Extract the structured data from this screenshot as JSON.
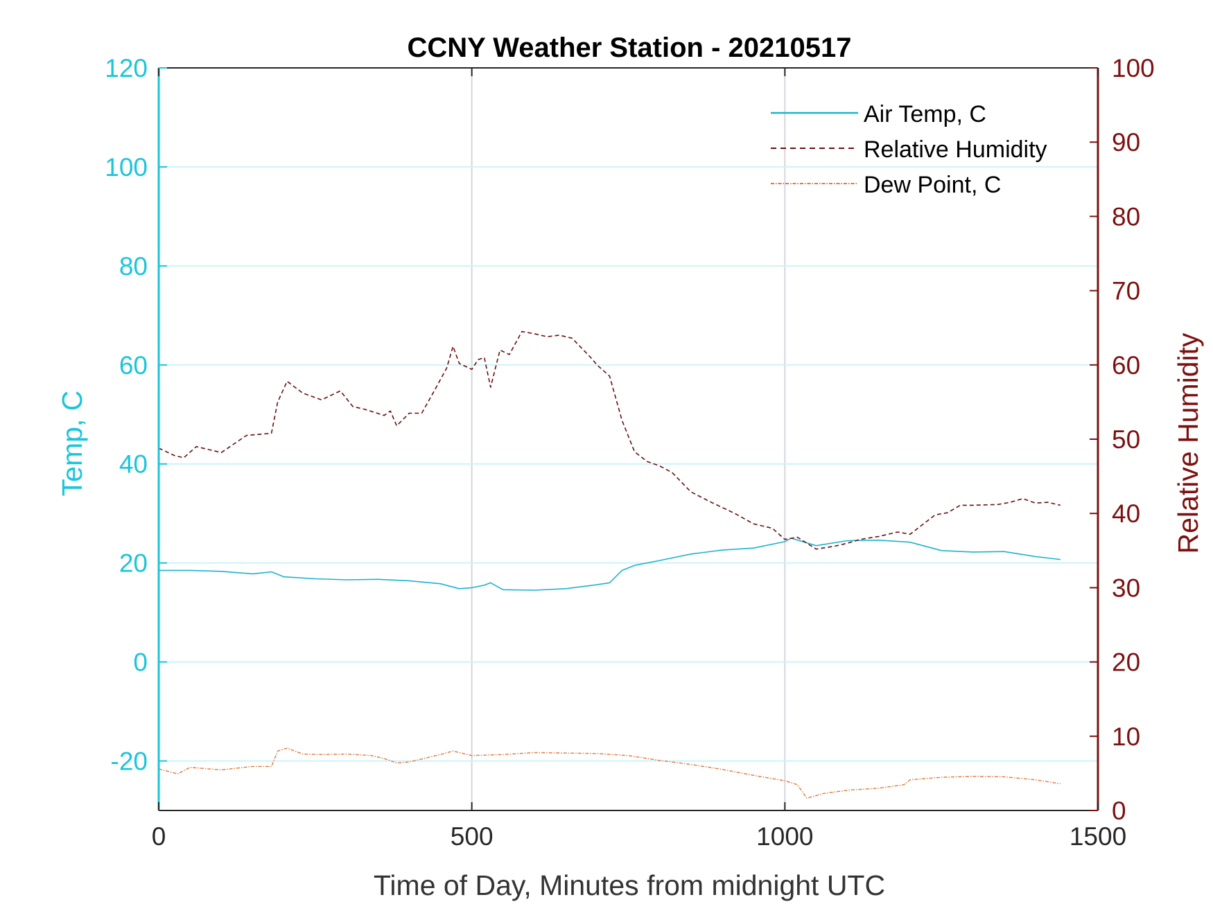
{
  "chart_data": {
    "type": "line",
    "title": "CCNY Weather Station - 20210517",
    "xlabel": "Time of Day, Minutes from midnight UTC",
    "ylabel_left": "Temp, C",
    "ylabel_right": "Relative Humidity",
    "xlim": [
      0,
      1500
    ],
    "ylim_left": [
      -30,
      120
    ],
    "ylim_right": [
      0,
      100
    ],
    "xticks": [
      0,
      500,
      1000,
      1500
    ],
    "yticks_left": [
      -20,
      0,
      20,
      40,
      60,
      80,
      100,
      120
    ],
    "yticks_right": [
      0,
      10,
      20,
      30,
      40,
      50,
      60,
      70,
      80,
      90,
      100
    ],
    "grid": "x and y major",
    "legend_position": "top-right",
    "colors": {
      "left_axis": "#1BC5DB",
      "right_axis": "#7E1010",
      "air_temp": "#1BB3CE",
      "humidity": "#6B0D0D",
      "dew_point": "#E0763C",
      "grid_x": "#D3D7DB",
      "grid_y": "#CDF3F8"
    },
    "series": [
      {
        "name": "Air Temp, C",
        "axis": "left",
        "style": "solid",
        "x": [
          0,
          50,
          100,
          150,
          180,
          200,
          250,
          300,
          350,
          400,
          450,
          480,
          500,
          520,
          530,
          550,
          600,
          650,
          700,
          720,
          740,
          760,
          800,
          850,
          900,
          950,
          1000,
          1010,
          1050,
          1100,
          1150,
          1200,
          1250,
          1300,
          1350,
          1400,
          1440
        ],
        "y": [
          18.5,
          18.5,
          18.3,
          17.8,
          18.2,
          17.2,
          16.8,
          16.6,
          16.7,
          16.4,
          15.8,
          14.8,
          15.0,
          15.5,
          16.0,
          14.6,
          14.5,
          14.8,
          15.6,
          16.0,
          18.5,
          19.5,
          20.5,
          21.8,
          22.6,
          23.0,
          24.3,
          25.0,
          23.5,
          24.5,
          24.6,
          24.2,
          22.5,
          22.2,
          22.3,
          21.3,
          20.7
        ]
      },
      {
        "name": "Relative Humidity",
        "axis": "right",
        "style": "dashed",
        "x": [
          0,
          25,
          40,
          60,
          100,
          140,
          180,
          190,
          205,
          230,
          260,
          290,
          310,
          330,
          360,
          370,
          380,
          400,
          420,
          440,
          460,
          470,
          480,
          500,
          510,
          520,
          530,
          545,
          560,
          580,
          600,
          620,
          640,
          660,
          690,
          700,
          720,
          740,
          760,
          780,
          800,
          820,
          850,
          880,
          920,
          950,
          980,
          1000,
          1020,
          1050,
          1080,
          1100,
          1120,
          1150,
          1180,
          1200,
          1220,
          1240,
          1260,
          1280,
          1300,
          1340,
          1360,
          1380,
          1400,
          1420,
          1440
        ],
        "y": [
          48.8,
          47.8,
          47.5,
          49.0,
          48.2,
          50.5,
          50.8,
          55.0,
          57.8,
          56.2,
          55.3,
          56.5,
          54.4,
          54.0,
          53.2,
          53.8,
          51.8,
          53.5,
          53.5,
          56.5,
          59.6,
          62.5,
          60.2,
          59.4,
          60.7,
          61.0,
          57.0,
          62.0,
          61.4,
          64.5,
          64.2,
          63.8,
          64.0,
          63.6,
          61.0,
          60.0,
          58.5,
          52.5,
          48.3,
          47.0,
          46.4,
          45.5,
          42.9,
          41.6,
          40.0,
          38.6,
          38.0,
          36.5,
          36.8,
          35.2,
          35.6,
          36.0,
          36.5,
          36.9,
          37.5,
          37.2,
          38.5,
          39.8,
          40.1,
          41.1,
          41.1,
          41.2,
          41.5,
          42.0,
          41.4,
          41.5,
          41.1
        ]
      },
      {
        "name": "Dew Point, C",
        "axis": "left",
        "style": "dash-dot",
        "x": [
          0,
          30,
          50,
          100,
          150,
          180,
          190,
          205,
          230,
          260,
          300,
          340,
          360,
          380,
          400,
          450,
          470,
          500,
          550,
          600,
          650,
          700,
          750,
          800,
          850,
          900,
          950,
          1000,
          1020,
          1035,
          1045,
          1060,
          1100,
          1150,
          1190,
          1200,
          1250,
          1300,
          1350,
          1400,
          1440
        ],
        "y": [
          -21.6,
          -22.6,
          -21.3,
          -21.8,
          -21.1,
          -21.1,
          -18.0,
          -17.4,
          -18.6,
          -18.7,
          -18.6,
          -18.9,
          -19.5,
          -20.4,
          -20.2,
          -18.7,
          -18.0,
          -18.9,
          -18.7,
          -18.3,
          -18.4,
          -18.5,
          -18.9,
          -19.9,
          -20.7,
          -21.7,
          -22.9,
          -24.0,
          -24.8,
          -27.5,
          -27.2,
          -26.6,
          -25.9,
          -25.5,
          -24.8,
          -23.8,
          -23.3,
          -23.1,
          -23.2,
          -23.8,
          -24.6
        ]
      }
    ]
  }
}
